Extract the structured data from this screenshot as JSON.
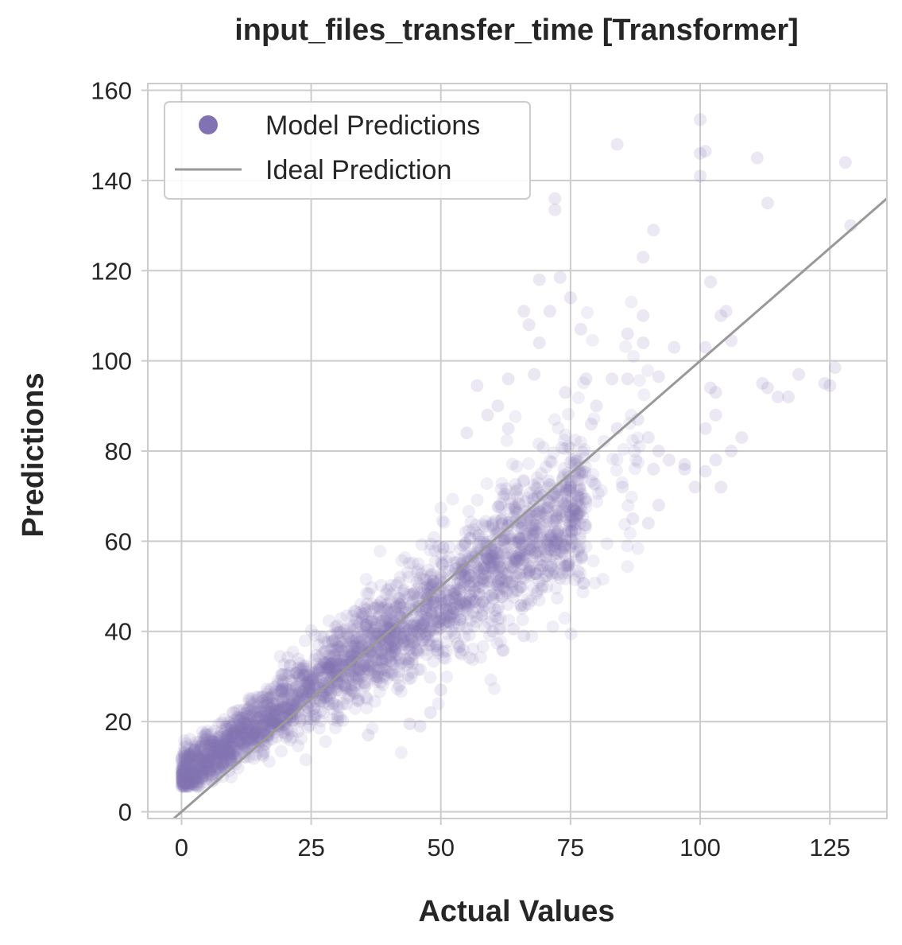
{
  "chart_data": {
    "type": "scatter",
    "title": "input_files_transfer_time [Transformer]",
    "xlabel": "Actual Values",
    "ylabel": "Predictions",
    "xlim": [
      -6.5,
      136
    ],
    "ylim": [
      -1.5,
      161.5
    ],
    "xticks": [
      0,
      25,
      50,
      75,
      100,
      125
    ],
    "yticks": [
      0,
      20,
      40,
      60,
      80,
      100,
      120,
      140,
      160
    ],
    "grid": true,
    "legend_position": "top-left",
    "colors": {
      "points": "#8172b3",
      "ideal_line": "#999999",
      "grid": "#cccccc"
    },
    "series": [
      {
        "name": "Model Predictions",
        "kind": "scatter",
        "note_density": "thousands of overlapping semi-transparent points; main band follows y = 0.75x + 6",
        "outliers": [
          [
            84,
            148
          ],
          [
            100,
            153.5
          ],
          [
            100,
            146
          ],
          [
            101,
            146.5
          ],
          [
            100,
            141
          ],
          [
            111,
            145
          ],
          [
            113,
            135
          ],
          [
            128,
            144
          ],
          [
            129,
            130
          ],
          [
            72,
            136
          ],
          [
            72,
            133.5
          ],
          [
            91,
            129
          ],
          [
            89,
            123
          ],
          [
            69,
            118
          ],
          [
            73,
            118.5
          ],
          [
            75,
            114
          ],
          [
            66,
            111
          ],
          [
            71,
            111
          ],
          [
            67,
            108
          ],
          [
            69,
            104
          ],
          [
            77,
            107
          ],
          [
            86,
            106
          ],
          [
            89,
            110
          ],
          [
            89,
            104
          ],
          [
            102,
            117.5
          ],
          [
            104,
            110
          ],
          [
            105,
            111
          ],
          [
            106,
            104.5
          ],
          [
            101,
            103
          ],
          [
            95,
            103
          ],
          [
            119,
            97
          ],
          [
            112,
            95
          ],
          [
            126,
            98.5
          ],
          [
            124,
            95
          ],
          [
            125,
            94.5
          ],
          [
            113,
            94
          ],
          [
            115,
            92
          ],
          [
            117,
            92
          ],
          [
            102,
            94
          ],
          [
            103,
            93
          ],
          [
            103,
            88
          ],
          [
            101,
            85
          ],
          [
            108,
            83
          ],
          [
            103,
            78
          ],
          [
            106,
            80
          ],
          [
            101,
            75.5
          ],
          [
            97,
            77
          ],
          [
            99,
            72
          ],
          [
            104,
            72
          ],
          [
            92,
            96.5
          ],
          [
            86,
            96
          ],
          [
            83,
            96
          ],
          [
            78,
            96
          ],
          [
            68,
            97
          ],
          [
            63,
            96
          ],
          [
            57,
            94.5
          ],
          [
            61,
            90
          ],
          [
            59,
            88
          ],
          [
            55,
            84
          ],
          [
            63,
            85
          ],
          [
            80,
            90
          ],
          [
            74,
            93
          ],
          [
            79,
            86
          ],
          [
            84,
            85
          ],
          [
            88,
            87
          ],
          [
            90,
            83
          ],
          [
            92,
            80
          ],
          [
            94,
            78
          ],
          [
            97,
            76
          ],
          [
            85,
            72
          ],
          [
            90,
            64
          ],
          [
            92,
            68
          ],
          [
            91,
            76
          ],
          [
            87,
            65
          ],
          [
            60,
            40
          ],
          [
            64,
            40.5
          ],
          [
            66,
            39
          ],
          [
            44,
            19.5
          ],
          [
            46,
            19
          ],
          [
            36,
            17
          ],
          [
            29,
            33
          ],
          [
            28,
            31
          ],
          [
            42,
            28
          ],
          [
            48,
            22
          ],
          [
            50,
            27
          ]
        ]
      },
      {
        "name": "Ideal Prediction",
        "kind": "line",
        "points": [
          [
            -2,
            -2
          ],
          [
            136,
            136
          ]
        ]
      }
    ]
  }
}
